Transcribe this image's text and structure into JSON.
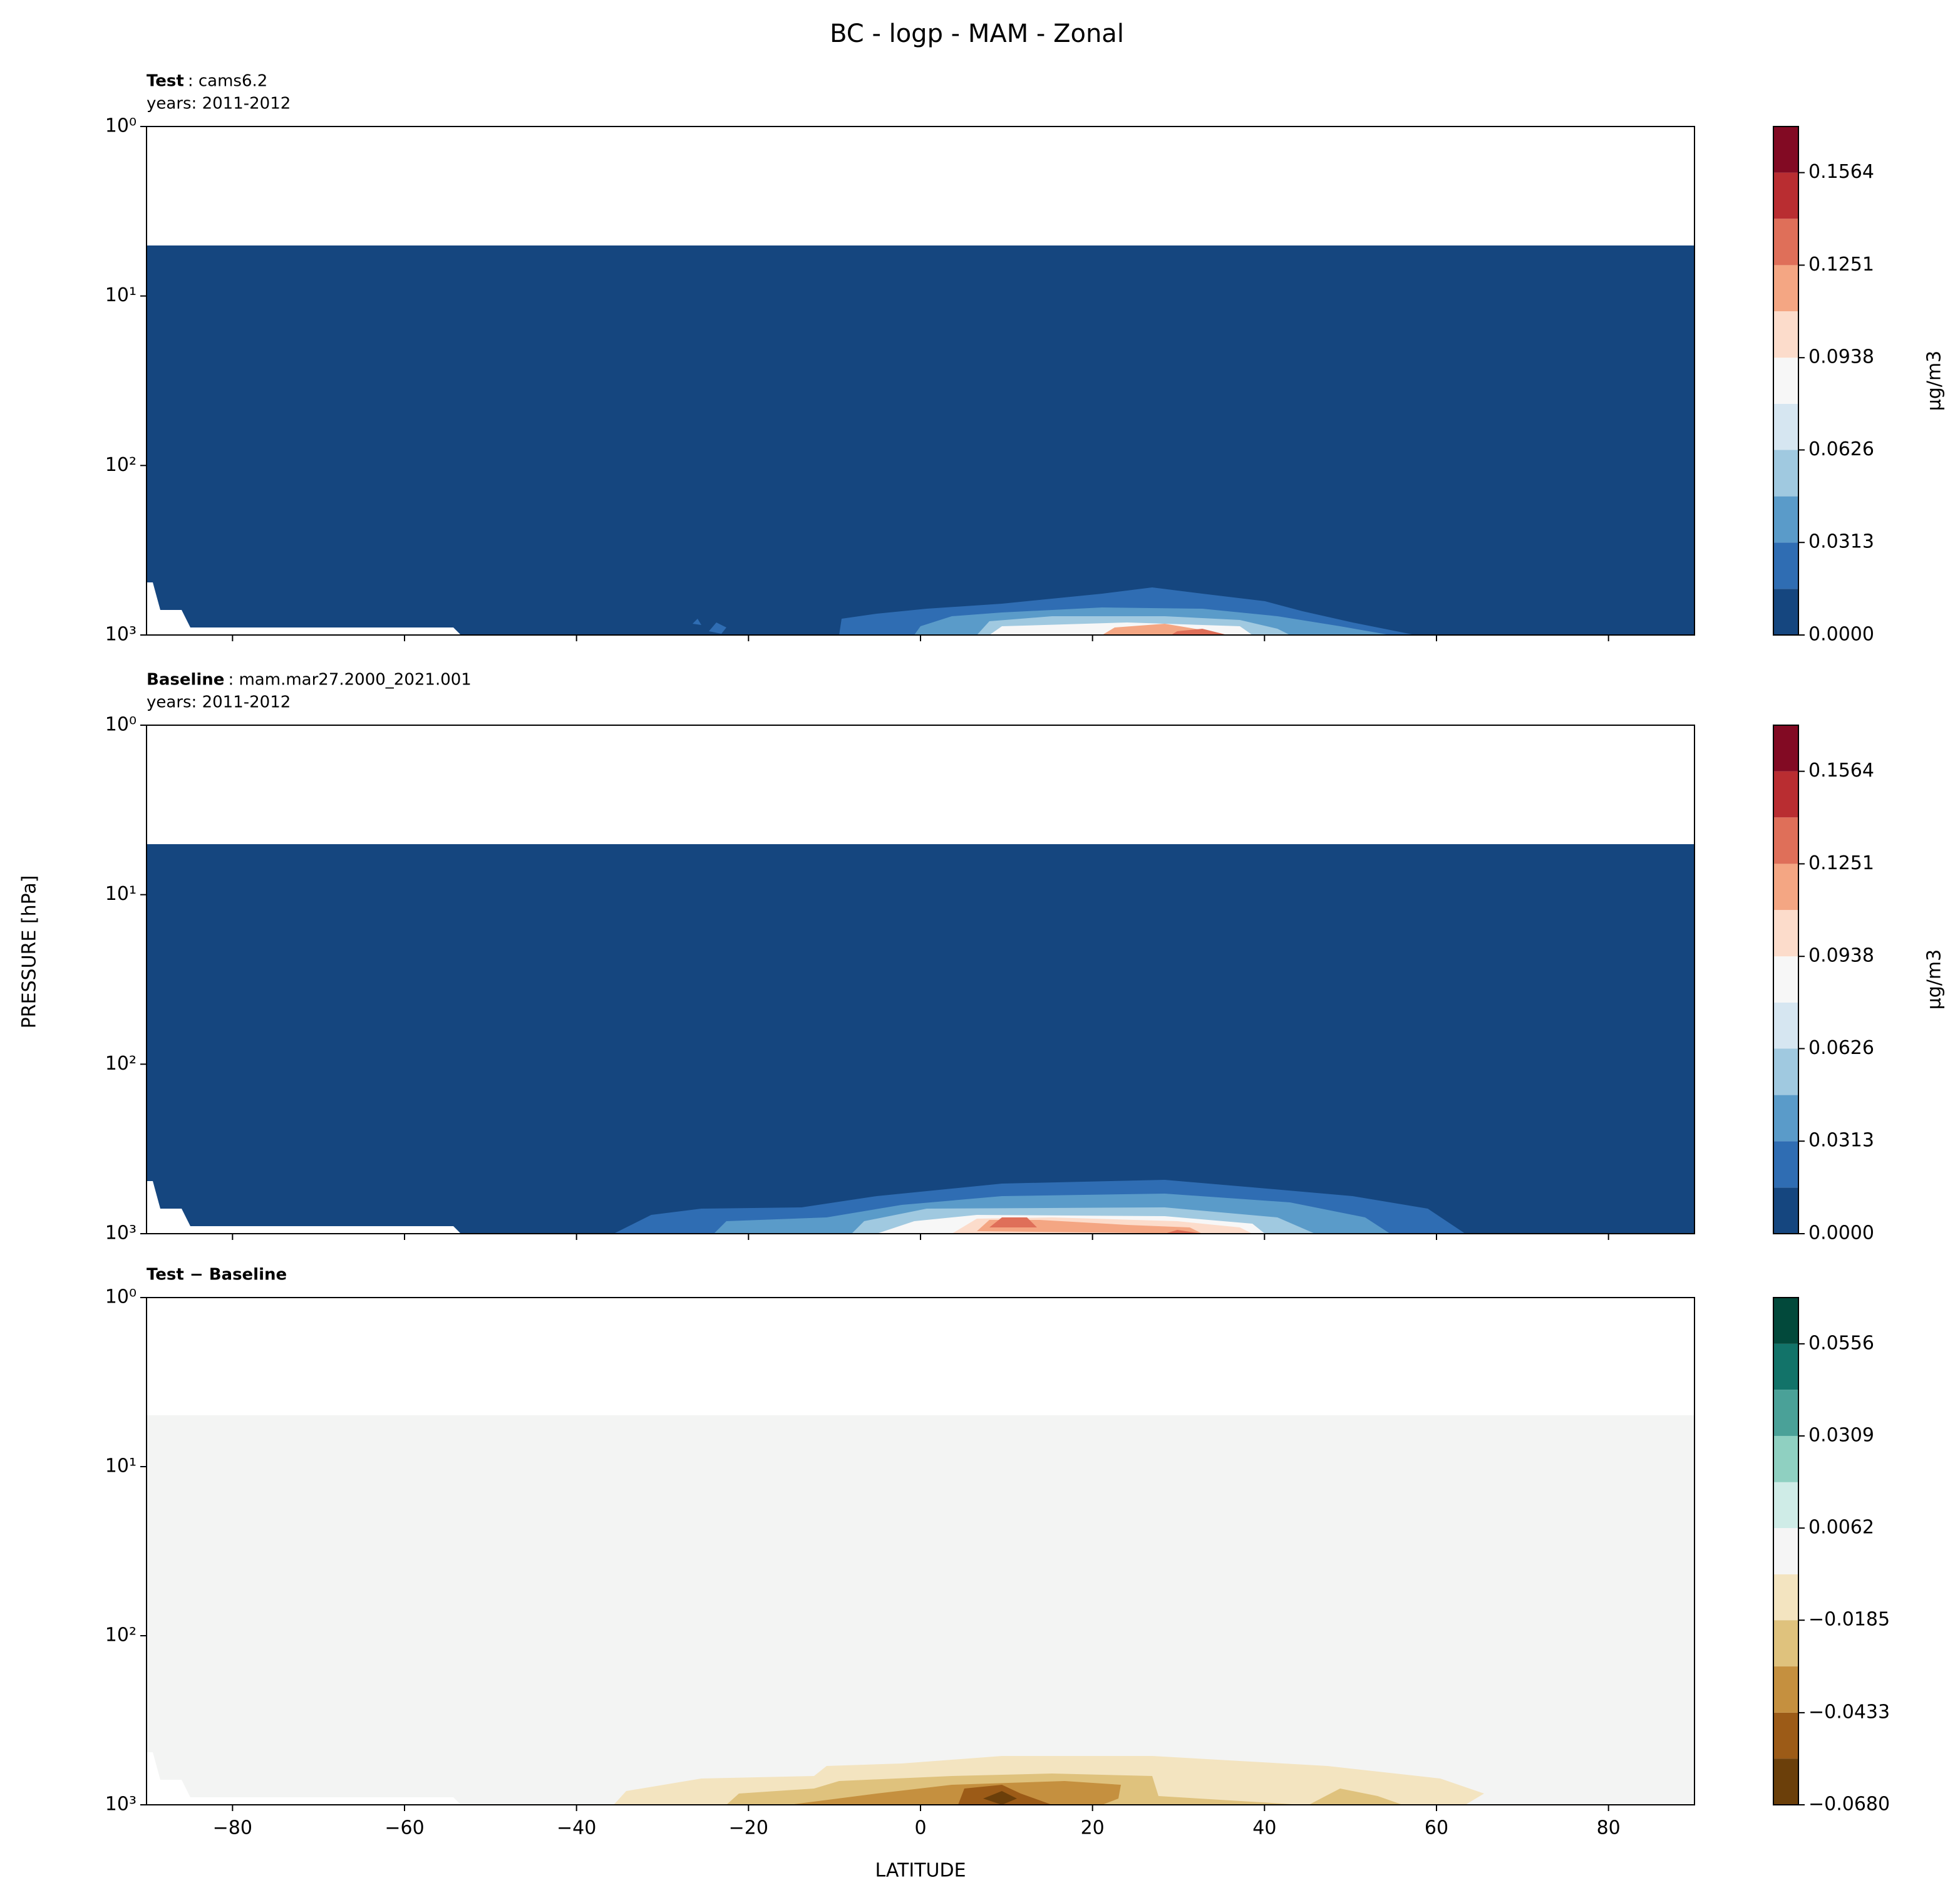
{
  "figure": {
    "title": "BC - logp - MAM - Zonal",
    "xlabel": "LATITUDE",
    "ylabel": "PRESSURE [hPa]"
  },
  "chart_data": [
    {
      "type": "contour",
      "label_bold": "Test",
      "label": ": cams6.2",
      "years": "years: 2011-2012",
      "xlim": [
        -90,
        90
      ],
      "xticks": [
        -80,
        -60,
        -40,
        -20,
        0,
        20,
        40,
        60,
        80
      ],
      "xticklabels": false,
      "ylim": [
        1000,
        1
      ],
      "yscale": "log",
      "yticks": [
        {
          "value": 1,
          "label": "10⁰"
        },
        {
          "value": 10,
          "label": "10¹"
        },
        {
          "value": 100,
          "label": "10²"
        },
        {
          "value": 1000,
          "label": "10³"
        }
      ],
      "colorbar": {
        "label": "μg/m3",
        "levels": [
          0,
          0.0156,
          0.0313,
          0.0469,
          0.0626,
          0.0782,
          0.0938,
          0.1095,
          0.1251,
          0.1408,
          0.1564,
          0.172
        ],
        "colors": [
          "#15467f",
          "#2f6db3",
          "#5a9bc9",
          "#a0c9e0",
          "#d6e6f1",
          "#f7f7f7",
          "#fcdccb",
          "#f4a683",
          "#df6f59",
          "#b92d31",
          "#820a23"
        ],
        "ticks": [
          {
            "value": 0,
            "label": "0.0000"
          },
          0.0313,
          0.0626,
          0.0938,
          0.1251,
          0.1564
        ]
      }
    },
    {
      "type": "contour",
      "label_bold": "Baseline",
      "label": ": mam.mar27.2000_2021.001",
      "years": "years: 2011-2012",
      "xlim": [
        -90,
        90
      ],
      "xticks": [
        -80,
        -60,
        -40,
        -20,
        0,
        20,
        40,
        60,
        80
      ],
      "xticklabels": false,
      "ylim": [
        1000,
        1
      ],
      "yscale": "log",
      "yticks": [
        {
          "value": 1,
          "label": "10⁰"
        },
        {
          "value": 10,
          "label": "10¹"
        },
        {
          "value": 100,
          "label": "10²"
        },
        {
          "value": 1000,
          "label": "10³"
        }
      ],
      "colorbar": {
        "label": "μg/m3",
        "levels": [
          0,
          0.0156,
          0.0313,
          0.0469,
          0.0626,
          0.0782,
          0.0938,
          0.1095,
          0.1251,
          0.1408,
          0.1564,
          0.172
        ],
        "colors": [
          "#15467f",
          "#2f6db3",
          "#5a9bc9",
          "#a0c9e0",
          "#d6e6f1",
          "#f7f7f7",
          "#fcdccb",
          "#f4a683",
          "#df6f59",
          "#b92d31",
          "#820a23"
        ],
        "ticks": [
          {
            "value": 0,
            "label": "0.0000"
          },
          0.0313,
          0.0626,
          0.0938,
          0.1251,
          0.1564
        ]
      }
    },
    {
      "type": "contour",
      "label_bold": "Test − Baseline",
      "xlim": [
        -90,
        90
      ],
      "xticks": [
        {
          "value": -80,
          "label": "−80"
        },
        {
          "value": -60,
          "label": "−60"
        },
        {
          "value": -40,
          "label": "−40"
        },
        {
          "value": -20,
          "label": "−20"
        },
        0,
        20,
        40,
        60,
        80
      ],
      "xticklabels": true,
      "ylim": [
        1000,
        1
      ],
      "yscale": "log",
      "yticks": [
        {
          "value": 1,
          "label": "10⁰"
        },
        {
          "value": 10,
          "label": "10¹"
        },
        {
          "value": 100,
          "label": "10²"
        },
        {
          "value": 1000,
          "label": "10³"
        }
      ],
      "colorbar": {
        "levels": [
          -0.068,
          -0.0556,
          -0.0433,
          -0.0309,
          -0.0185,
          -0.0062,
          0.0062,
          0.0185,
          0.0309,
          0.0433,
          0.0556,
          0.068
        ],
        "colors": [
          "#6b3f0a",
          "#9c5b17",
          "#c5903f",
          "#dfc27d",
          "#f3e4c0",
          "#f5f5f5",
          "#cfece7",
          "#8fd0c1",
          "#4aa198",
          "#127369",
          "#02493b"
        ],
        "ticks": [
          {
            "value": -0.068,
            "label": "−0.0680"
          },
          {
            "value": -0.0433,
            "label": "−0.0433"
          },
          {
            "value": -0.0185,
            "label": "−0.0185"
          },
          0.0062,
          0.0309,
          0.0556
        ]
      }
    }
  ]
}
